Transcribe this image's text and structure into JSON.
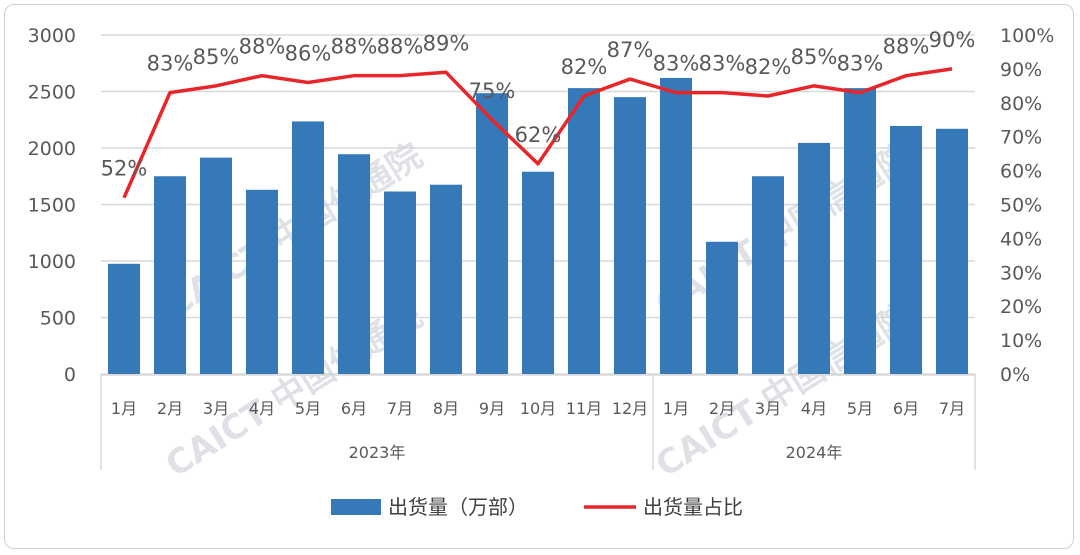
{
  "chart_data": {
    "type": "bar+line",
    "categories": [
      "1月",
      "2月",
      "3月",
      "4月",
      "5月",
      "6月",
      "7月",
      "8月",
      "9月",
      "10月",
      "11月",
      "12月",
      "1月",
      "2月",
      "3月",
      "4月",
      "5月",
      "6月",
      "7月"
    ],
    "groups": [
      {
        "label": "2023年",
        "count": 12
      },
      {
        "label": "2024年",
        "count": 7
      }
    ],
    "series": [
      {
        "name": "出货量（万部）",
        "type": "bar",
        "axis": "left",
        "color": "#3579b8",
        "values": [
          975,
          1750,
          1915,
          1630,
          2235,
          1945,
          1615,
          1675,
          2485,
          1790,
          2530,
          2450,
          2620,
          1170,
          1750,
          2045,
          2530,
          2195,
          2170
        ]
      },
      {
        "name": "出货量占比",
        "type": "line",
        "axis": "right",
        "color": "#e8262a",
        "values": [
          52,
          83,
          85,
          88,
          86,
          88,
          88,
          89,
          75,
          62,
          82,
          87,
          83,
          83,
          82,
          85,
          83,
          88,
          90
        ],
        "labels": [
          "52%",
          "83%",
          "85%",
          "88%",
          "86%",
          "88%",
          "88%",
          "89%",
          "75%",
          "62%",
          "82%",
          "87%",
          "83%",
          "83%",
          "82%",
          "85%",
          "83%",
          "88%",
          "90%"
        ]
      }
    ],
    "left_axis": {
      "ylim": [
        0,
        3000
      ],
      "ticks": [
        "0",
        "500",
        "1000",
        "1500",
        "2000",
        "2500",
        "3000"
      ]
    },
    "right_axis": {
      "ylim": [
        0,
        100
      ],
      "ticks": [
        "0%",
        "10%",
        "20%",
        "30%",
        "40%",
        "50%",
        "60%",
        "70%",
        "80%",
        "90%",
        "100%"
      ]
    },
    "grid": true,
    "legend_placement": "bottom",
    "watermark": "CAICT 中国信通院"
  }
}
